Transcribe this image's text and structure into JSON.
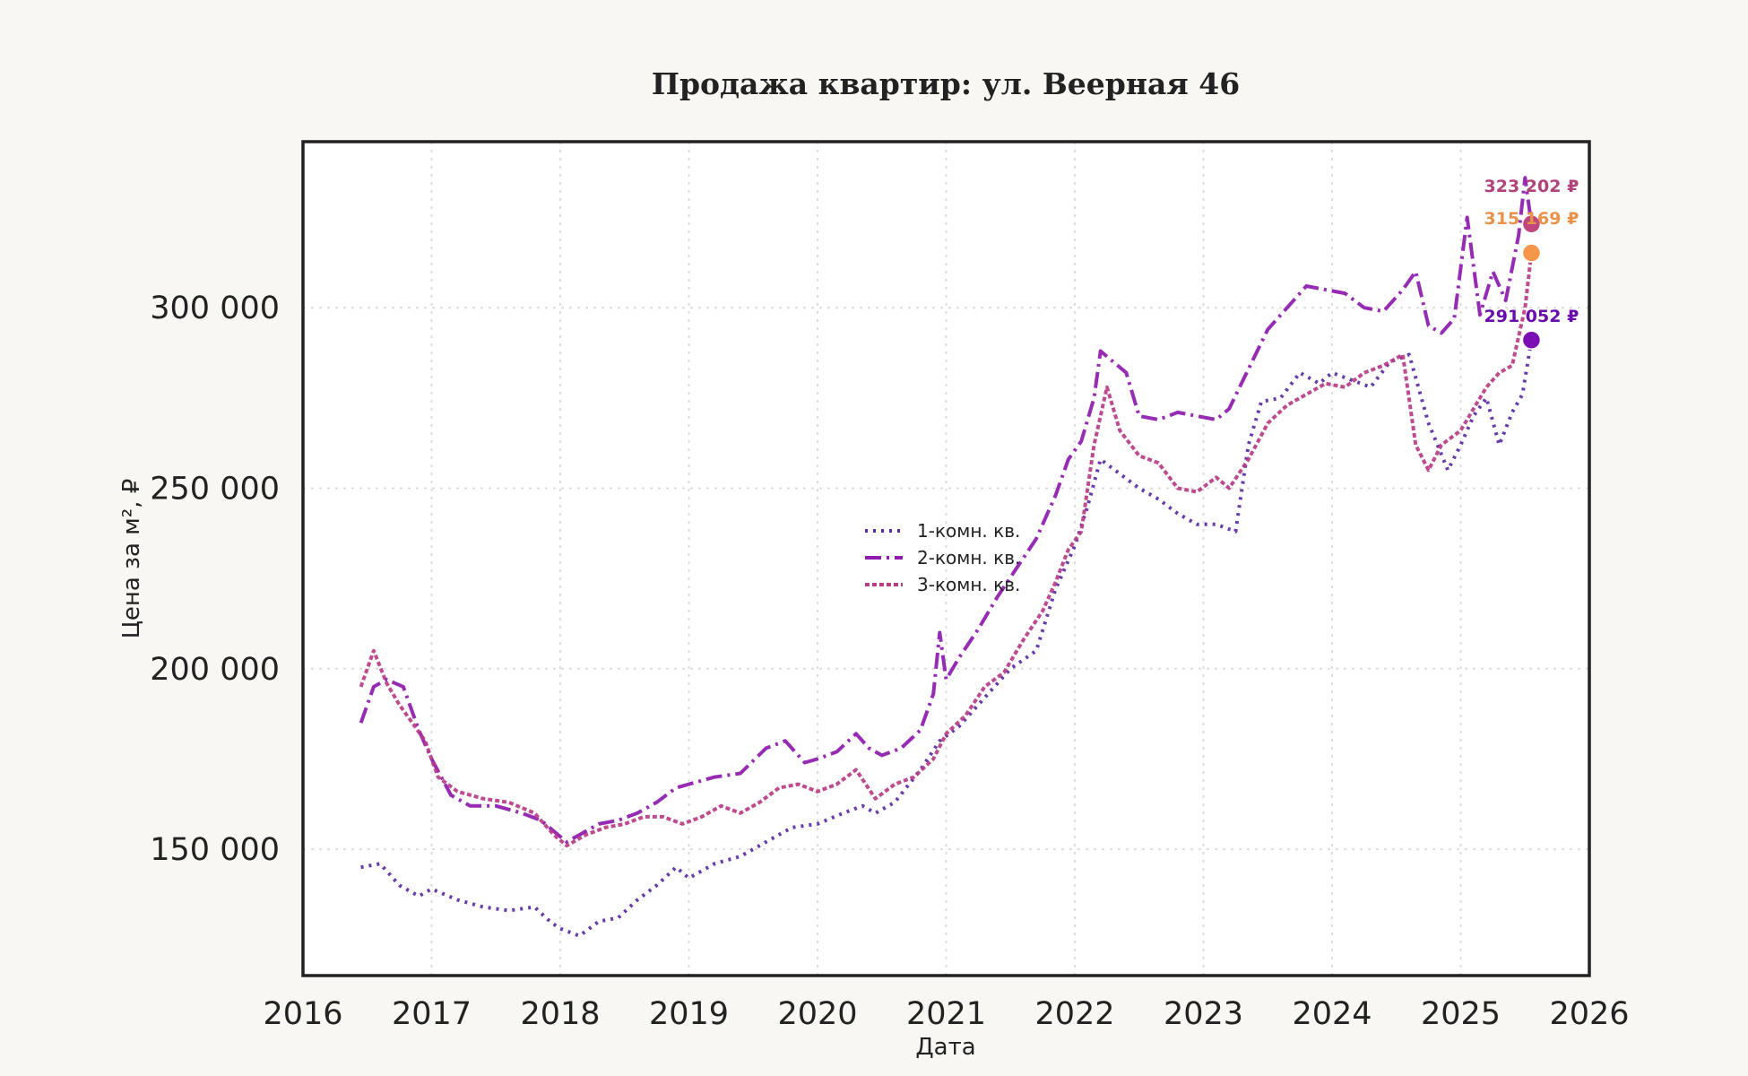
{
  "chart_data": {
    "type": "line",
    "title": "Продажа квартир: ул. Веерная 46",
    "xlabel": "Дата",
    "ylabel": "Цена за м², ₽",
    "x_ticks": [
      "2016",
      "2017",
      "2018",
      "2019",
      "2020",
      "2021",
      "2022",
      "2023",
      "2024",
      "2025",
      "2026"
    ],
    "y_ticks": [
      "150 000",
      "200 000",
      "250 000",
      "300 000"
    ],
    "xlim": [
      2016.0,
      2026.0
    ],
    "ylim": [
      115000,
      346000
    ],
    "grid": true,
    "legend_position": "center",
    "x_unit": "year",
    "series": [
      {
        "name": "1-комн. кв.",
        "color": "#5b2aa5",
        "dash": "dotted",
        "end_label": "291 052 ₽",
        "end_label_color": "#6a0dad",
        "end_marker_color": "#7a0fb3",
        "x": [
          2016.45,
          2016.6,
          2016.75,
          2016.9,
          2017.0,
          2017.2,
          2017.4,
          2017.6,
          2017.8,
          2017.92,
          2018.0,
          2018.15,
          2018.3,
          2018.45,
          2018.6,
          2018.75,
          2018.9,
          2019.0,
          2019.2,
          2019.4,
          2019.6,
          2019.8,
          2020.0,
          2020.2,
          2020.35,
          2020.45,
          2020.6,
          2020.8,
          2020.95,
          2021.1,
          2021.3,
          2021.5,
          2021.7,
          2021.85,
          2022.0,
          2022.1,
          2022.2,
          2022.35,
          2022.5,
          2022.65,
          2022.8,
          2022.95,
          2023.1,
          2023.25,
          2023.35,
          2023.45,
          2023.6,
          2023.75,
          2023.9,
          2024.0,
          2024.15,
          2024.3,
          2024.45,
          2024.6,
          2024.75,
          2024.9,
          2025.0,
          2025.1,
          2025.2,
          2025.3,
          2025.4,
          2025.48,
          2025.55
        ],
        "values": [
          145000,
          146000,
          140000,
          137000,
          139000,
          136000,
          134000,
          133000,
          134000,
          130000,
          128000,
          126000,
          130000,
          131000,
          136000,
          140000,
          145000,
          142000,
          146000,
          148000,
          152000,
          156000,
          157000,
          160000,
          162000,
          160000,
          163000,
          172000,
          180000,
          184000,
          192000,
          200000,
          205000,
          222000,
          234000,
          245000,
          258000,
          254000,
          250000,
          247000,
          243000,
          240000,
          240000,
          238000,
          262000,
          274000,
          275000,
          282000,
          279000,
          282000,
          280000,
          278000,
          285000,
          287000,
          268000,
          255000,
          262000,
          270000,
          275000,
          262000,
          271000,
          276000,
          291052
        ]
      },
      {
        "name": "2-комн. кв.",
        "color": "#8e1aae",
        "dash": "dashdot",
        "end_label": "323 202 ₽",
        "end_label_color": "#b0427a",
        "end_marker_color": "#c0467e",
        "x": [
          2016.45,
          2016.55,
          2016.65,
          2016.78,
          2016.9,
          2017.0,
          2017.15,
          2017.3,
          2017.5,
          2017.7,
          2017.85,
          2017.95,
          2018.05,
          2018.15,
          2018.3,
          2018.45,
          2018.6,
          2018.75,
          2018.9,
          2019.0,
          2019.2,
          2019.4,
          2019.6,
          2019.75,
          2019.9,
          2020.0,
          2020.15,
          2020.3,
          2020.4,
          2020.5,
          2020.65,
          2020.8,
          2020.9,
          2020.95,
          2021.0,
          2021.1,
          2021.25,
          2021.4,
          2021.55,
          2021.7,
          2021.85,
          2021.95,
          2022.05,
          2022.15,
          2022.2,
          2022.3,
          2022.4,
          2022.5,
          2022.65,
          2022.8,
          2022.95,
          2023.1,
          2023.2,
          2023.35,
          2023.5,
          2023.65,
          2023.8,
          2023.95,
          2024.1,
          2024.25,
          2024.4,
          2024.55,
          2024.65,
          2024.75,
          2024.85,
          2024.95,
          2025.05,
          2025.15,
          2025.25,
          2025.35,
          2025.45,
          2025.5,
          2025.55
        ],
        "values": [
          185000,
          195000,
          197000,
          195000,
          183000,
          175000,
          165000,
          162000,
          162000,
          160000,
          158000,
          155000,
          152000,
          154000,
          157000,
          158000,
          160000,
          163000,
          167000,
          168000,
          170000,
          171000,
          178000,
          180000,
          174000,
          175000,
          177000,
          182000,
          178000,
          176000,
          178000,
          183000,
          193000,
          210000,
          197000,
          203000,
          211000,
          220000,
          228000,
          236000,
          248000,
          258000,
          263000,
          275000,
          288000,
          285000,
          282000,
          270000,
          269000,
          271000,
          270000,
          269000,
          272000,
          283000,
          294000,
          300000,
          306000,
          305000,
          304000,
          300000,
          299000,
          305000,
          310000,
          295000,
          293000,
          297000,
          325000,
          298000,
          310000,
          302000,
          320000,
          336000,
          323202
        ]
      },
      {
        "name": "3-комн. кв.",
        "color": "#b83c86",
        "dash": "densedot",
        "end_label": "315 169 ₽",
        "end_label_color": "#e8924c",
        "end_marker_color": "#f6964a",
        "x": [
          2016.45,
          2016.55,
          2016.65,
          2016.75,
          2016.85,
          2016.95,
          2017.05,
          2017.2,
          2017.4,
          2017.6,
          2017.8,
          2017.95,
          2018.05,
          2018.2,
          2018.35,
          2018.5,
          2018.65,
          2018.8,
          2018.95,
          2019.1,
          2019.25,
          2019.4,
          2019.55,
          2019.7,
          2019.85,
          2020.0,
          2020.15,
          2020.3,
          2020.45,
          2020.6,
          2020.75,
          2020.9,
          2021.0,
          2021.15,
          2021.3,
          2021.45,
          2021.6,
          2021.75,
          2021.85,
          2021.95,
          2022.05,
          2022.15,
          2022.25,
          2022.35,
          2022.5,
          2022.65,
          2022.8,
          2022.95,
          2023.1,
          2023.2,
          2023.35,
          2023.5,
          2023.65,
          2023.8,
          2023.95,
          2024.1,
          2024.25,
          2024.4,
          2024.55,
          2024.65,
          2024.75,
          2024.85,
          2025.0,
          2025.1,
          2025.2,
          2025.3,
          2025.4,
          2025.5,
          2025.55
        ],
        "values": [
          195000,
          205000,
          196000,
          190000,
          185000,
          180000,
          170000,
          166000,
          164000,
          163000,
          160000,
          154000,
          151000,
          154000,
          156000,
          157000,
          159000,
          159000,
          157000,
          159000,
          162000,
          160000,
          163000,
          167000,
          168000,
          166000,
          168000,
          172000,
          164000,
          168000,
          170000,
          175000,
          182000,
          187000,
          195000,
          199000,
          208000,
          216000,
          224000,
          233000,
          238000,
          262000,
          278000,
          266000,
          259000,
          257000,
          250000,
          249000,
          253000,
          250000,
          258000,
          268000,
          273000,
          276000,
          279000,
          278000,
          282000,
          284000,
          287000,
          262000,
          255000,
          262000,
          266000,
          272000,
          278000,
          282000,
          284000,
          300000,
          315169
        ]
      }
    ]
  }
}
